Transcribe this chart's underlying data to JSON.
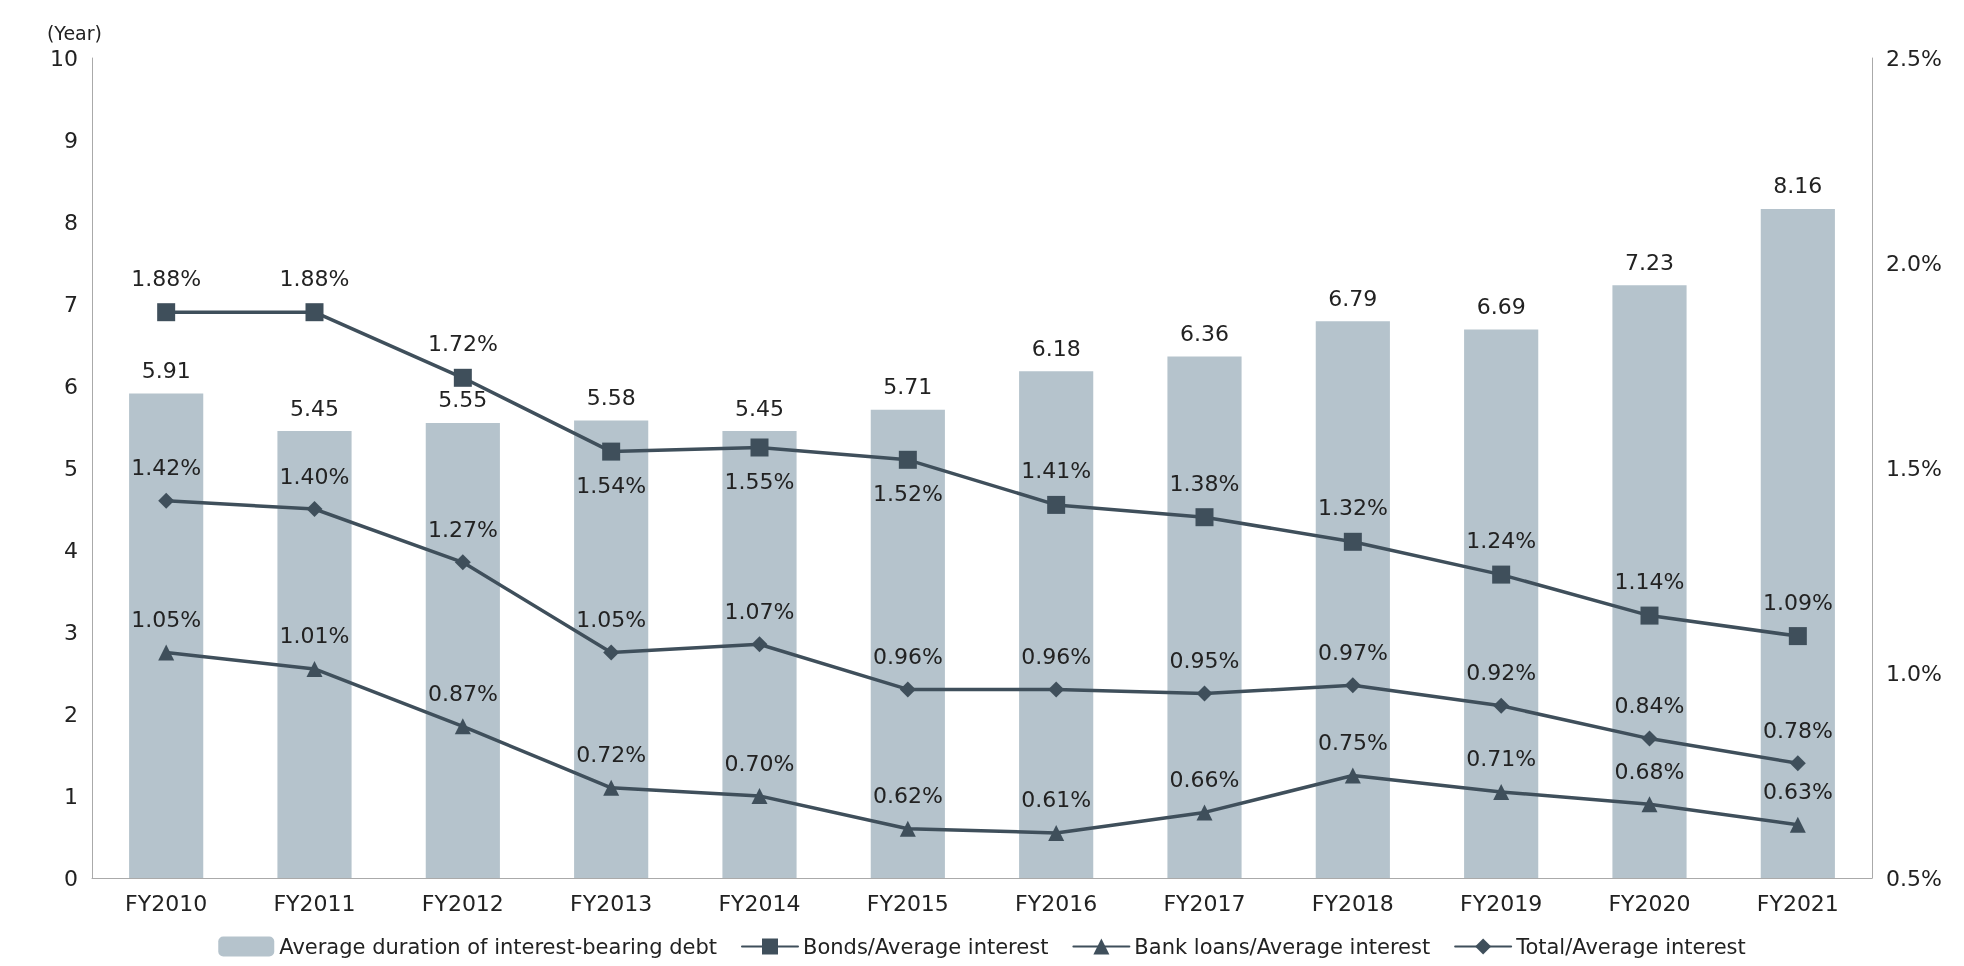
{
  "chart_data": {
    "type": "bar",
    "ylabel": "(Year)",
    "categories": [
      "FY2010",
      "FY2011",
      "FY2012",
      "FY2013",
      "FY2014",
      "FY2015",
      "FY2016",
      "FY2017",
      "FY2018",
      "FY2019",
      "FY2020",
      "FY2021"
    ],
    "series": [
      {
        "name": "Average duration of interest-bearing debt",
        "color": "#b5c3cc",
        "values": [
          5.91,
          5.45,
          5.55,
          5.58,
          5.45,
          5.71,
          6.18,
          6.36,
          6.79,
          6.69,
          7.23,
          8.16
        ],
        "value_labels": [
          "5.91",
          "5.45",
          "5.55",
          "5.58",
          "5.45",
          "5.71",
          "6.18",
          "6.36",
          "6.79",
          "6.69",
          "7.23",
          "8.16"
        ]
      },
      {
        "name": "Bonds/Average interest",
        "type": "line",
        "axis": "y2",
        "marker": "square",
        "color": "#3f4f5b",
        "values": [
          1.88,
          1.88,
          1.72,
          1.54,
          1.55,
          1.52,
          1.41,
          1.38,
          1.32,
          1.24,
          1.14,
          1.09
        ],
        "value_labels": [
          "1.88%",
          "1.88%",
          "1.72%",
          "1.54%",
          "1.55%",
          "1.52%",
          "1.41%",
          "1.38%",
          "1.32%",
          "1.24%",
          "1.14%",
          "1.09%"
        ]
      },
      {
        "name": "Bank loans/Average interest",
        "type": "line",
        "axis": "y2",
        "marker": "triangle",
        "color": "#3f4f5b",
        "values": [
          1.05,
          1.01,
          0.87,
          0.72,
          0.7,
          0.62,
          0.61,
          0.66,
          0.75,
          0.71,
          0.68,
          0.63
        ],
        "value_labels": [
          "1.05%",
          "1.01%",
          "0.87%",
          "0.72%",
          "0.70%",
          "0.62%",
          "0.61%",
          "0.66%",
          "0.75%",
          "0.71%",
          "0.68%",
          "0.63%"
        ]
      },
      {
        "name": "Total/Average interest",
        "type": "line",
        "axis": "y2",
        "marker": "diamond",
        "color": "#3f4f5b",
        "values": [
          1.42,
          1.4,
          1.27,
          1.05,
          1.07,
          0.96,
          0.96,
          0.95,
          0.97,
          0.92,
          0.84,
          0.78
        ],
        "value_labels": [
          "1.42%",
          "1.40%",
          "1.27%",
          "1.05%",
          "1.07%",
          "0.96%",
          "0.96%",
          "0.95%",
          "0.97%",
          "0.92%",
          "0.84%",
          "0.78%"
        ]
      }
    ],
    "ylim": [
      0,
      10
    ],
    "yticks": [
      0,
      1,
      2,
      3,
      4,
      5,
      6,
      7,
      8,
      9,
      10
    ],
    "y2lim": [
      0.5,
      2.5
    ],
    "y2ticks": [
      {
        "value": 0.5,
        "label": "0.5%"
      },
      {
        "value": 1.0,
        "label": "1.0%"
      },
      {
        "value": 1.5,
        "label": "1.5%"
      },
      {
        "value": 2.0,
        "label": "2.0%"
      },
      {
        "value": 2.5,
        "label": "2.5%"
      }
    ],
    "legend": "bottom",
    "grid": false,
    "line_style": "solid"
  }
}
